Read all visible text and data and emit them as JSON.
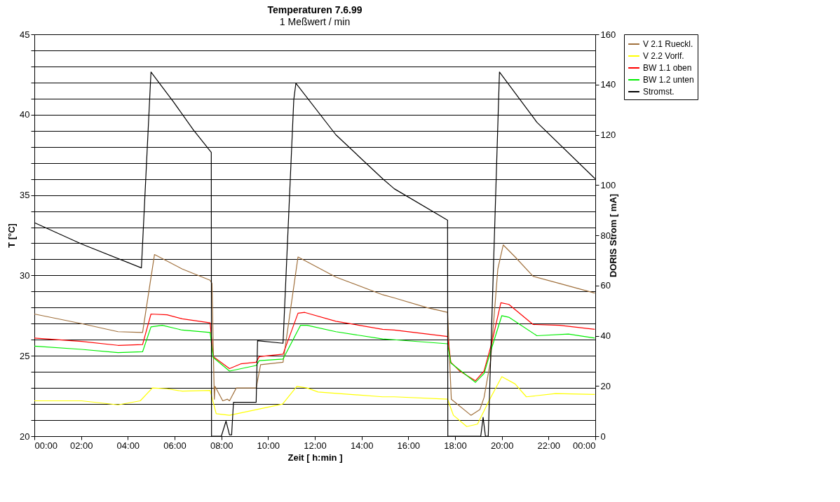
{
  "chart_data": {
    "type": "line",
    "title": "Temperaturen 7.6.99",
    "subtitle": "1 Meßwert / min",
    "xlabel": "Zeit [ h:min ]",
    "ylabel": "T [°C]",
    "y2label": "DORIS Strom [ mA]",
    "xlim": [
      0,
      24
    ],
    "xticks": [
      {
        "value": 0,
        "label": "00:00"
      },
      {
        "value": 2,
        "label": "02:00"
      },
      {
        "value": 4,
        "label": "04:00"
      },
      {
        "value": 6,
        "label": "06:00"
      },
      {
        "value": 8,
        "label": "08:00"
      },
      {
        "value": 10,
        "label": "10:00"
      },
      {
        "value": 12,
        "label": "12:00"
      },
      {
        "value": 14,
        "label": "14:00"
      },
      {
        "value": 16,
        "label": "16:00"
      },
      {
        "value": 18,
        "label": "18:00"
      },
      {
        "value": 20,
        "label": "20:00"
      },
      {
        "value": 22,
        "label": "22:00"
      },
      {
        "value": 24,
        "label": "00:00"
      }
    ],
    "ylim": [
      20,
      45
    ],
    "yticks": [
      20,
      {
        "value": 21,
        "label": null
      },
      {
        "value": 22,
        "label": null
      },
      {
        "value": 23,
        "label": null
      },
      {
        "value": 24,
        "label": null
      },
      25,
      {
        "value": 26,
        "label": null
      },
      {
        "value": 27,
        "label": null
      },
      {
        "value": 28,
        "label": null
      },
      {
        "value": 29,
        "label": null
      },
      30,
      {
        "value": 31,
        "label": null
      },
      {
        "value": 32,
        "label": null
      },
      {
        "value": 33,
        "label": null
      },
      {
        "value": 34,
        "label": null
      },
      35,
      {
        "value": 36,
        "label": null
      },
      {
        "value": 37,
        "label": null
      },
      {
        "value": 38,
        "label": null
      },
      {
        "value": 39,
        "label": null
      },
      40,
      {
        "value": 41,
        "label": null
      },
      {
        "value": 42,
        "label": null
      },
      {
        "value": 43,
        "label": null
      },
      {
        "value": 44,
        "label": null
      },
      45
    ],
    "y2lim": [
      0,
      160
    ],
    "y2ticks": [
      0,
      20,
      40,
      60,
      80,
      100,
      120,
      140,
      160
    ],
    "grid": "y",
    "legend": "right",
    "line_style": "solid",
    "marker": "none",
    "series": [
      {
        "name": "V 2.1 Rueckl.",
        "color": "#a0703c",
        "x": [
          0,
          2.02,
          3.58,
          4.63,
          5.14,
          6.33,
          7.52,
          7.6,
          7.7,
          7.73,
          8.06,
          8.26,
          8.35,
          8.64,
          9.49,
          9.68,
          10.64,
          11.28,
          12.9,
          14.9,
          15.4,
          16.8,
          17.68,
          17.84,
          18.68,
          19.06,
          19.24,
          19.52,
          19.83,
          20.06,
          20.57,
          21.34,
          22.47,
          23.98
        ],
        "values": [
          27.6,
          27.0,
          26.5,
          26.45,
          31.3,
          30.4,
          29.7,
          29.5,
          22.3,
          23.1,
          22.2,
          22.3,
          22.2,
          23.0,
          23.0,
          24.45,
          24.6,
          31.15,
          29.9,
          28.8,
          28.6,
          28.0,
          27.7,
          22.3,
          21.3,
          21.65,
          22.4,
          24.7,
          30.4,
          31.9,
          31.15,
          29.95,
          29.5,
          28.9
        ]
      },
      {
        "name": "V 2.2 Vorlf.",
        "color": "#ffff00",
        "x": [
          0,
          2.02,
          3.58,
          4.53,
          5.05,
          5.68,
          6.33,
          7.52,
          7.78,
          8.35,
          9.49,
          10.62,
          11.23,
          11.67,
          12.14,
          14.9,
          15.4,
          17.68,
          17.93,
          18.5,
          18.96,
          19.45,
          20.0,
          20.57,
          21.05,
          22.3,
          23.98
        ],
        "values": [
          22.2,
          22.2,
          21.95,
          22.2,
          23.0,
          22.95,
          22.8,
          22.85,
          21.4,
          21.3,
          21.65,
          22.0,
          23.1,
          23.0,
          22.75,
          22.45,
          22.45,
          22.3,
          21.3,
          20.6,
          20.75,
          22.2,
          23.7,
          23.25,
          22.45,
          22.65,
          22.6
        ]
      },
      {
        "name": "BW 1.1 oben",
        "color": "#ff0000",
        "x": [
          0,
          2.02,
          3.58,
          4.63,
          4.99,
          5.68,
          6.33,
          7.52,
          7.65,
          8.35,
          8.83,
          9.49,
          9.62,
          10.64,
          11.28,
          11.57,
          12.9,
          14.9,
          15.4,
          17.68,
          17.82,
          18.2,
          18.87,
          19.24,
          19.57,
          19.96,
          20.3,
          21.34,
          22.47,
          23.98
        ],
        "values": [
          26.1,
          25.9,
          25.65,
          25.7,
          27.6,
          27.55,
          27.3,
          27.05,
          24.95,
          24.2,
          24.5,
          24.6,
          24.95,
          25.1,
          27.65,
          27.7,
          27.15,
          26.65,
          26.6,
          26.2,
          24.6,
          24.05,
          23.45,
          24.05,
          25.8,
          28.3,
          28.2,
          26.95,
          26.9,
          26.65
        ]
      },
      {
        "name": "BW 1.2 unten",
        "color": "#00ee00",
        "x": [
          0,
          2.02,
          3.58,
          4.63,
          4.99,
          5.47,
          6.33,
          7.52,
          7.65,
          8.35,
          9.49,
          9.62,
          10.64,
          11.39,
          11.67,
          12.9,
          14.9,
          15.4,
          17.68,
          17.82,
          18.87,
          19.24,
          19.57,
          20.0,
          20.3,
          21.5,
          22.85,
          23.98
        ],
        "values": [
          25.6,
          25.4,
          25.2,
          25.25,
          26.8,
          26.9,
          26.6,
          26.45,
          24.9,
          24.05,
          24.4,
          24.7,
          24.8,
          26.9,
          26.9,
          26.5,
          26.05,
          26.0,
          25.75,
          24.55,
          23.35,
          23.9,
          25.5,
          27.5,
          27.4,
          26.25,
          26.35,
          26.1
        ]
      },
      {
        "name": "Stromst.",
        "color": "#000000",
        "axis": "y2",
        "x": [
          0,
          2.02,
          4.58,
          4.99,
          5.96,
          6.8,
          7.57,
          7.58,
          8.0,
          8.2,
          8.35,
          8.44,
          8.52,
          9.49,
          9.55,
          10.64,
          11.1,
          11.19,
          12.9,
          14.9,
          15.4,
          17.68,
          17.69,
          19.1,
          19.2,
          19.3,
          19.42,
          19.9,
          21.5,
          23.99
        ],
        "values": [
          85,
          76.5,
          67,
          145,
          133,
          122,
          113,
          0,
          0,
          6,
          0.5,
          0.5,
          13.5,
          13.5,
          38,
          37,
          134,
          140.5,
          120,
          102.5,
          98.5,
          86,
          0,
          0,
          7.5,
          0,
          0,
          145,
          125,
          102.5
        ]
      }
    ]
  }
}
